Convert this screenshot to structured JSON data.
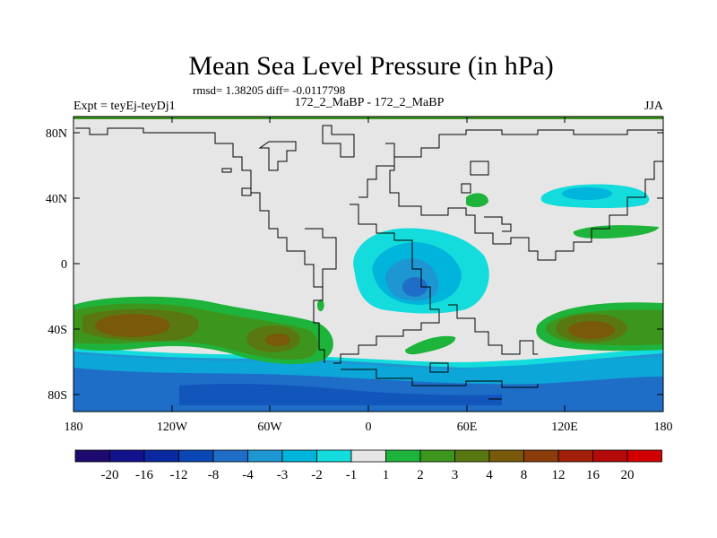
{
  "title": "Mean Sea Level Pressure (in hPa)",
  "stats": "rmsd= 1.38205 diff= -0.0117798",
  "left_label": "Expt = teyEj-teyDj1",
  "center_label": "172_2_MaBP - 172_2_MaBP",
  "right_label": "JJA",
  "x_ticks": [
    "180",
    "120W",
    "60W",
    "0",
    "60E",
    "120E",
    "180"
  ],
  "y_ticks": [
    "80N",
    "40N",
    "0",
    "40S",
    "80S"
  ],
  "colorbar": {
    "labels": [
      "-20",
      "-16",
      "-12",
      "-8",
      "-4",
      "-3",
      "-2",
      "-1",
      "1",
      "2",
      "3",
      "4",
      "8",
      "12",
      "16",
      "20"
    ],
    "colors": [
      "#1e0a6e",
      "#12128c",
      "#0a28a0",
      "#0a46b4",
      "#1e6ec8",
      "#1e96d2",
      "#00b4dc",
      "#14dcdc",
      "#e6e6e6",
      "#1eb43c",
      "#3c961e",
      "#5a7812",
      "#785a0a",
      "#8c3c0a",
      "#a01e0a",
      "#b40a0a",
      "#d20000"
    ]
  },
  "colors": {
    "background_field": "#e6e6e6",
    "top_strip": "#3c961e"
  }
}
